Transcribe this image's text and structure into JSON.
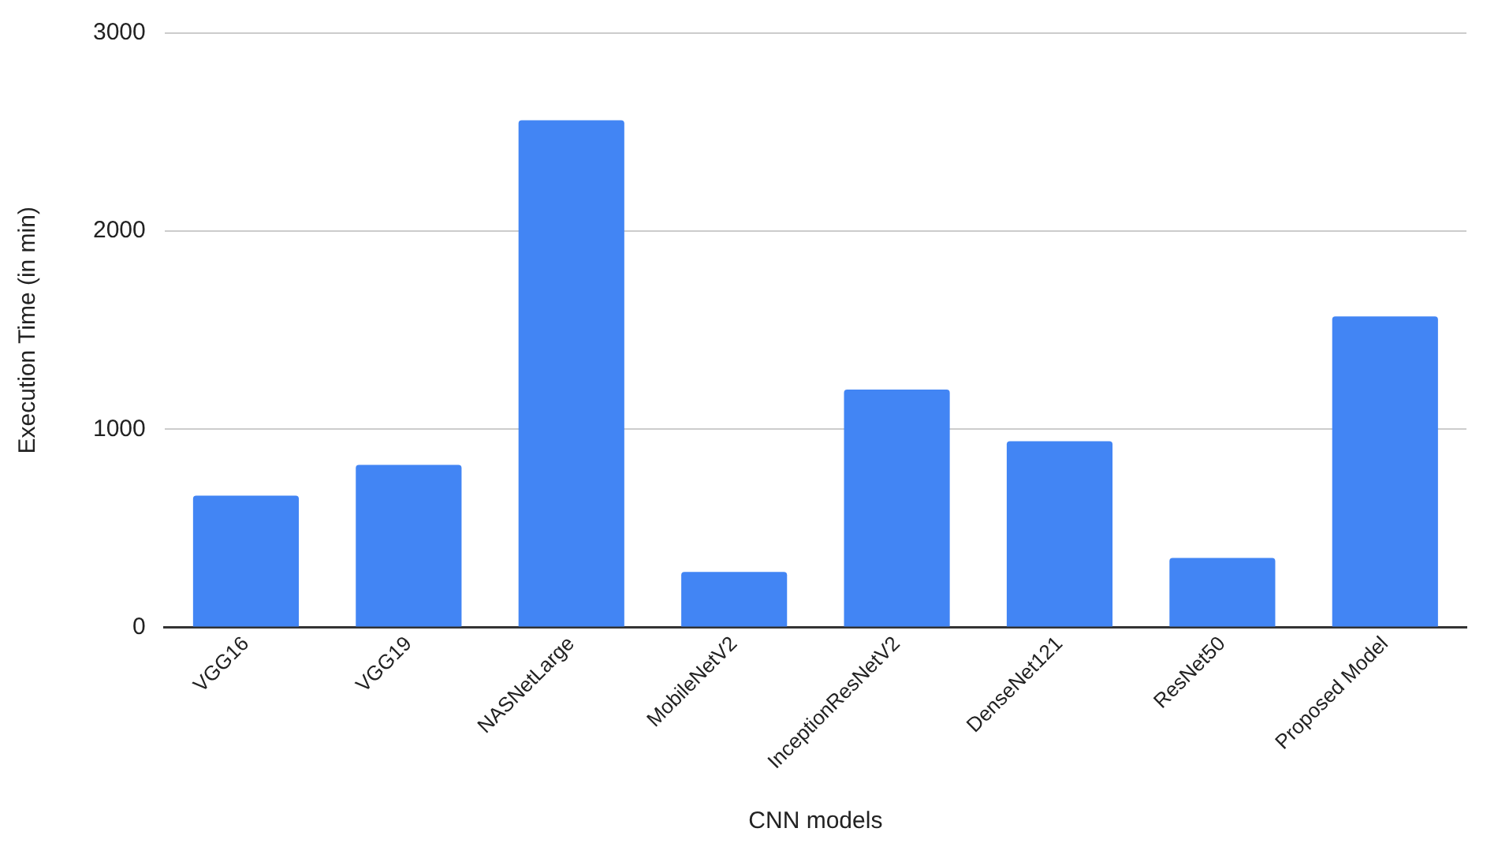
{
  "chart_data": {
    "type": "bar",
    "xlabel": "CNN models",
    "ylabel": "Execution Time (in min)",
    "categories": [
      "VGG16",
      "VGG19",
      "NASNetLarge",
      "MobileNetV2",
      "InceptionResNetV2",
      "DenseNet121",
      "ResNet50",
      "Proposed Model"
    ],
    "values": [
      665,
      820,
      2560,
      280,
      1200,
      940,
      350,
      1570
    ],
    "color": "#4285f4",
    "ylim": [
      0,
      3000
    ],
    "yticks": [
      0,
      1000,
      2000,
      3000
    ],
    "grid": "y"
  }
}
